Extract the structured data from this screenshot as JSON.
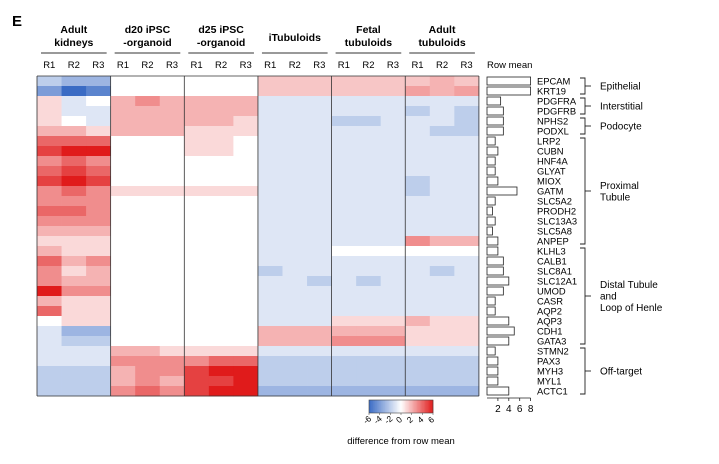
{
  "panel_label": "E",
  "chart_data": {
    "type": "heatmap",
    "title": "",
    "panel": "E",
    "groups": [
      {
        "name": "Adult kidneys",
        "lines": [
          "Adult",
          "kidneys"
        ]
      },
      {
        "name": "d20 iPSC-organoid",
        "lines": [
          "d20 iPSC",
          "-organoid"
        ]
      },
      {
        "name": "d25 iPSC-organoid",
        "lines": [
          "d25 iPSC",
          "-organoid"
        ]
      },
      {
        "name": "iTubuloids",
        "lines": [
          "iTubuloids"
        ]
      },
      {
        "name": "Fetal tubuloids",
        "lines": [
          "Fetal",
          "tubuloids"
        ]
      },
      {
        "name": "Adult tubuloids",
        "lines": [
          "Adult",
          "tubuloids"
        ]
      }
    ],
    "replicates": [
      "R1",
      "R2",
      "R3"
    ],
    "genes": [
      "EPCAM",
      "KRT19",
      "PDGFRA",
      "PDGFRB",
      "NPHS2",
      "PODXL",
      "LRP2",
      "CUBN",
      "HNF4A",
      "GLYAT",
      "MIOX",
      "GATM",
      "SLC5A2",
      "PRODH2",
      "SLC13A3",
      "SLC5A8",
      "ANPEP",
      "KLHL3",
      "CALB1",
      "SLC8A1",
      "SLC12A1",
      "UMOD",
      "CASR",
      "AQP2",
      "AQP3",
      "CDH1",
      "GATA3",
      "STMN2",
      "PAX3",
      "MYH3",
      "MYL1",
      "ACTC1"
    ],
    "values": [
      [
        -2,
        -3,
        -3,
        0,
        0,
        0,
        0,
        0,
        0,
        1.5,
        1.5,
        1.5,
        1.5,
        1.5,
        1.5,
        1.5,
        2,
        1.5
      ],
      [
        -4,
        -6,
        -5,
        0,
        0,
        0,
        0,
        0,
        0,
        1.5,
        1.5,
        1.5,
        1.5,
        1.5,
        1.5,
        2.5,
        2,
        2.5
      ],
      [
        1,
        -1,
        0,
        2,
        3,
        2,
        2,
        2,
        2,
        -1,
        -1,
        -1,
        -1,
        -1,
        -1,
        -1,
        -1,
        -1
      ],
      [
        1,
        -1,
        -1,
        2,
        2,
        2,
        2,
        2,
        2,
        -1,
        -1,
        -1,
        -1,
        -1,
        -1,
        -2,
        -1,
        -2
      ],
      [
        1,
        0,
        -1,
        2,
        2,
        2,
        2,
        2,
        1,
        -1,
        -1,
        -1,
        -2,
        -2,
        -1,
        -1,
        -1,
        -2
      ],
      [
        2,
        2,
        1,
        2,
        2,
        2,
        1,
        1,
        1,
        -1,
        -1,
        -1,
        -1,
        -1,
        -1,
        -1,
        -2,
        -2
      ],
      [
        4,
        4,
        4,
        0,
        0,
        0,
        1,
        1,
        0,
        -1,
        -1,
        -1,
        -1,
        -1,
        -1,
        -1,
        -1,
        -1
      ],
      [
        5,
        6,
        6,
        0,
        0,
        0,
        1,
        1,
        0,
        -1,
        -1,
        -1,
        -1,
        -1,
        -1,
        -1,
        -1,
        -1
      ],
      [
        3,
        4,
        3,
        0,
        0,
        0,
        0,
        0,
        0,
        -1,
        -1,
        -1,
        -1,
        -1,
        -1,
        -1,
        -1,
        -1
      ],
      [
        4,
        5,
        4,
        0,
        0,
        0,
        0,
        0,
        0,
        -1,
        -1,
        -1,
        -1,
        -1,
        -1,
        -1,
        -1,
        -1
      ],
      [
        5,
        6,
        5,
        0,
        0,
        0,
        0,
        0,
        0,
        -1,
        -1,
        -1,
        -1,
        -1,
        -1,
        -2,
        -1,
        -1
      ],
      [
        3,
        4,
        3,
        1,
        1,
        1,
        1,
        1,
        1,
        -1,
        -1,
        -1,
        -1,
        -1,
        -1,
        -2,
        -1,
        -1
      ],
      [
        3,
        3,
        3,
        0,
        0,
        0,
        0,
        0,
        0,
        -1,
        -1,
        -1,
        -1,
        -1,
        -1,
        -1,
        -1,
        -1
      ],
      [
        4,
        4,
        3,
        0,
        0,
        0,
        0,
        0,
        0,
        -1,
        -1,
        -1,
        -1,
        -1,
        -1,
        -1,
        -1,
        -1
      ],
      [
        3,
        3,
        3,
        0,
        0,
        0,
        0,
        0,
        0,
        -1,
        -1,
        -1,
        -1,
        -1,
        -1,
        -1,
        -1,
        -1
      ],
      [
        2,
        2,
        2,
        0,
        0,
        0,
        0,
        0,
        0,
        -1,
        -1,
        -1,
        -1,
        -1,
        -1,
        -1,
        -1,
        -1
      ],
      [
        1,
        1,
        1,
        0,
        0,
        0,
        0,
        0,
        0,
        -1,
        -1,
        -1,
        -1,
        -1,
        -1,
        3,
        2,
        2
      ],
      [
        2,
        1,
        1,
        0,
        0,
        0,
        0,
        0,
        0,
        -1,
        -1,
        -1,
        0,
        0,
        0,
        0,
        0,
        0
      ],
      [
        4,
        2,
        3,
        0,
        0,
        0,
        0,
        0,
        0,
        -1,
        -1,
        -1,
        -1,
        -1,
        -1,
        -1,
        -1,
        -1
      ],
      [
        3,
        1,
        2,
        0,
        0,
        0,
        0,
        0,
        0,
        -2,
        -1,
        -1,
        -1,
        -1,
        -1,
        -1,
        -2,
        -1
      ],
      [
        3,
        2,
        2,
        0,
        0,
        0,
        0,
        0,
        0,
        -1,
        -1,
        -2,
        -1,
        -2,
        -1,
        -1,
        -1,
        -1
      ],
      [
        6,
        3,
        3,
        0,
        0,
        0,
        0,
        0,
        0,
        -1,
        -1,
        -1,
        -1,
        -1,
        -1,
        -1,
        -1,
        -1
      ],
      [
        2,
        1,
        1,
        0,
        0,
        0,
        0,
        0,
        0,
        -1,
        -1,
        -1,
        -1,
        -1,
        -1,
        -1,
        -1,
        -1
      ],
      [
        4,
        1,
        1,
        0,
        0,
        0,
        0,
        0,
        0,
        -1,
        -1,
        -1,
        -1,
        -1,
        -1,
        -1,
        -1,
        -1
      ],
      [
        0,
        1,
        1,
        0,
        0,
        0,
        0,
        0,
        0,
        -1,
        -1,
        -1,
        1,
        1,
        1,
        2,
        1,
        1
      ],
      [
        -1,
        -3,
        -3,
        0,
        0,
        0,
        0,
        0,
        0,
        2,
        2,
        2,
        2,
        2,
        2,
        1,
        1,
        1
      ],
      [
        -1,
        -2,
        -2,
        0,
        0,
        0,
        0,
        0,
        0,
        2,
        2,
        2,
        3,
        3,
        3,
        1,
        1,
        1
      ],
      [
        -1,
        -1,
        -1,
        2,
        2,
        1,
        1,
        1,
        1,
        -1,
        -1,
        -1,
        -1,
        -1,
        -1,
        -1,
        -1,
        -1
      ],
      [
        -1,
        -1,
        -1,
        3,
        3,
        3,
        3,
        4,
        4,
        -2,
        -2,
        -2,
        -2,
        -2,
        -2,
        -2,
        -2,
        -2
      ],
      [
        -2,
        -2,
        -2,
        2,
        3,
        3,
        5,
        6,
        6,
        -2,
        -2,
        -2,
        -2,
        -2,
        -2,
        -2,
        -2,
        -2
      ],
      [
        -2,
        -2,
        -2,
        2,
        3,
        2,
        5,
        5,
        6,
        -2,
        -2,
        -2,
        -2,
        -2,
        -2,
        -2,
        -2,
        -2
      ],
      [
        -2,
        -2,
        -2,
        3,
        4,
        3,
        5,
        6,
        6,
        -3,
        -3,
        -3,
        -3,
        -3,
        -3,
        -3,
        -3,
        -3
      ]
    ],
    "row_mean": {
      "title": "Row mean",
      "values": [
        8,
        8,
        2.5,
        3,
        3,
        3,
        1.5,
        2,
        1.5,
        1.5,
        2,
        5.5,
        1.5,
        1,
        1.5,
        1,
        2,
        2,
        3,
        3,
        4,
        3,
        1.5,
        1.5,
        4,
        5,
        4,
        1.5,
        2,
        2,
        2,
        4
      ],
      "ticks": [
        2,
        4,
        6,
        8
      ],
      "range": [
        0,
        8
      ]
    },
    "categories_annotations": [
      {
        "label": "Epithelial",
        "lines": [
          "Epithelial"
        ],
        "from": "EPCAM",
        "to": "KRT19"
      },
      {
        "label": "Interstitial",
        "lines": [
          "Interstitial"
        ],
        "from": "PDGFRA",
        "to": "PDGFRB"
      },
      {
        "label": "Podocyte",
        "lines": [
          "Podocyte"
        ],
        "from": "NPHS2",
        "to": "PODXL"
      },
      {
        "label": "Proximal Tubule",
        "lines": [
          "Proximal",
          "Tubule"
        ],
        "from": "LRP2",
        "to": "ANPEP"
      },
      {
        "label": "Distal Tubule and Loop of Henle",
        "lines": [
          "Distal Tubule",
          "and",
          "Loop of Henle"
        ],
        "from": "KLHL3",
        "to": "GATA3"
      },
      {
        "label": "Off-target",
        "lines": [
          "Off-target"
        ],
        "from": "STMN2",
        "to": "ACTC1"
      }
    ],
    "color_scale": {
      "label": "difference from row mean",
      "ticks": [
        -6,
        -4,
        -2,
        0,
        2,
        4,
        6
      ],
      "min": -6,
      "max": 6,
      "low_color": "#3a6bc4",
      "mid_color": "#ffffff",
      "high_color": "#e01b1b"
    }
  }
}
